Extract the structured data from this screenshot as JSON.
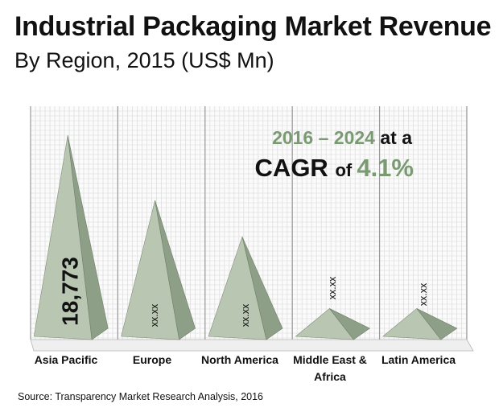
{
  "title": "Industrial Packaging Market Revenue",
  "subtitle": "By Region, 2015 (US$ Mn)",
  "source": "Source: Transparency Market Research Analysis, 2016",
  "annotation": {
    "period": "2016 – 2024",
    "at_a": "at a",
    "cagr": "CAGR",
    "of": "of",
    "rate": "4.1%"
  },
  "colors": {
    "accent_green": "#7a9a72",
    "pyramid_light": "#b9c6b2",
    "pyramid_dark": "#8e9f88",
    "grid": "#c8c8c8"
  },
  "chart_data": {
    "type": "bar",
    "style": "3d-pyramid",
    "categories": [
      "Asia Pacific",
      "Europe",
      "North America",
      "Middle East & Africa",
      "Latin America"
    ],
    "category_lines": [
      [
        "Asia Pacific"
      ],
      [
        "Europe"
      ],
      [
        "North America"
      ],
      [
        "Middle East &",
        "Africa"
      ],
      [
        "Latin America"
      ]
    ],
    "values": [
      18773,
      12700,
      9300,
      2600,
      2600
    ],
    "data_labels": [
      "18,773",
      "xx.xx",
      "xx.xx",
      "xx.xx",
      "xx.xx"
    ],
    "ylim": [
      0,
      20000
    ],
    "grid": true,
    "legend": "none"
  }
}
